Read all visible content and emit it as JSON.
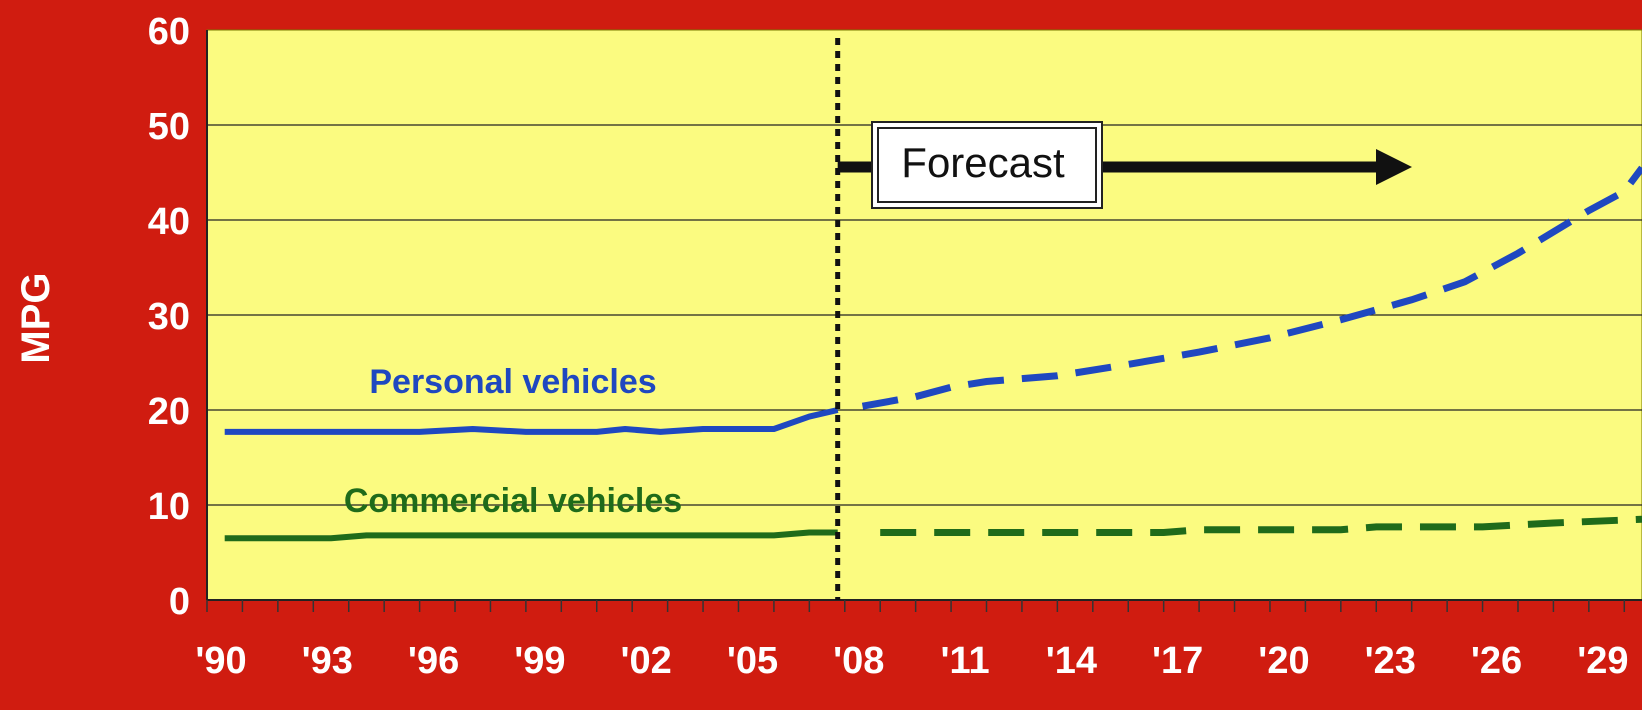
{
  "chart_data": {
    "type": "line",
    "ylabel": "MPG",
    "ylim": [
      0,
      60
    ],
    "yticks": [
      0,
      10,
      20,
      30,
      40,
      50,
      60
    ],
    "xlim": [
      1990,
      2030.5
    ],
    "xticks": [
      {
        "year": 1990,
        "label": "'90"
      },
      {
        "year": 1993,
        "label": "'93"
      },
      {
        "year": 1996,
        "label": "'96"
      },
      {
        "year": 1999,
        "label": "'99"
      },
      {
        "year": 2002,
        "label": "'02"
      },
      {
        "year": 2005,
        "label": "'05"
      },
      {
        "year": 2008,
        "label": "'08"
      },
      {
        "year": 2011,
        "label": "'11"
      },
      {
        "year": 2014,
        "label": "'14"
      },
      {
        "year": 2017,
        "label": "'17"
      },
      {
        "year": 2020,
        "label": "'20"
      },
      {
        "year": 2023,
        "label": "'23"
      },
      {
        "year": 2026,
        "label": "'26"
      },
      {
        "year": 2029,
        "label": "'29"
      }
    ],
    "grid": true,
    "forecast_start": 2007.8,
    "forecast_label": "Forecast",
    "series": [
      {
        "name": "Personal vehicles",
        "color": "#1f48c0",
        "historical": [
          [
            1990.5,
            17.7
          ],
          [
            1993,
            17.7
          ],
          [
            1996,
            17.7
          ],
          [
            1997.5,
            18.0
          ],
          [
            1999,
            17.7
          ],
          [
            2001,
            17.7
          ],
          [
            2001.8,
            18.0
          ],
          [
            2002.8,
            17.7
          ],
          [
            2004,
            18.0
          ],
          [
            2006,
            18.0
          ],
          [
            2007,
            19.3
          ],
          [
            2007.8,
            20.0
          ]
        ],
        "forecast": [
          [
            2008.5,
            20.4
          ],
          [
            2010,
            21.4
          ],
          [
            2011,
            22.4
          ],
          [
            2012,
            23.0
          ],
          [
            2014,
            23.6
          ],
          [
            2016,
            24.8
          ],
          [
            2018,
            26.1
          ],
          [
            2020,
            27.6
          ],
          [
            2022,
            29.5
          ],
          [
            2024,
            31.6
          ],
          [
            2025.5,
            33.5
          ],
          [
            2027,
            36.5
          ],
          [
            2029,
            41.0
          ],
          [
            2030,
            43.0
          ],
          [
            2030.5,
            45.5
          ]
        ]
      },
      {
        "name": "Commercial vehicles",
        "color": "#1f6b1a",
        "historical": [
          [
            1990.5,
            6.5
          ],
          [
            1993.5,
            6.5
          ],
          [
            1994.5,
            6.8
          ],
          [
            2000,
            6.8
          ],
          [
            2006,
            6.8
          ],
          [
            2007,
            7.1
          ],
          [
            2007.8,
            7.1
          ]
        ],
        "forecast": [
          [
            2009,
            7.1
          ],
          [
            2017,
            7.1
          ],
          [
            2018,
            7.4
          ],
          [
            2022,
            7.4
          ],
          [
            2023,
            7.7
          ],
          [
            2026,
            7.7
          ],
          [
            2028,
            8.1
          ],
          [
            2030.5,
            8.5
          ]
        ]
      }
    ]
  }
}
